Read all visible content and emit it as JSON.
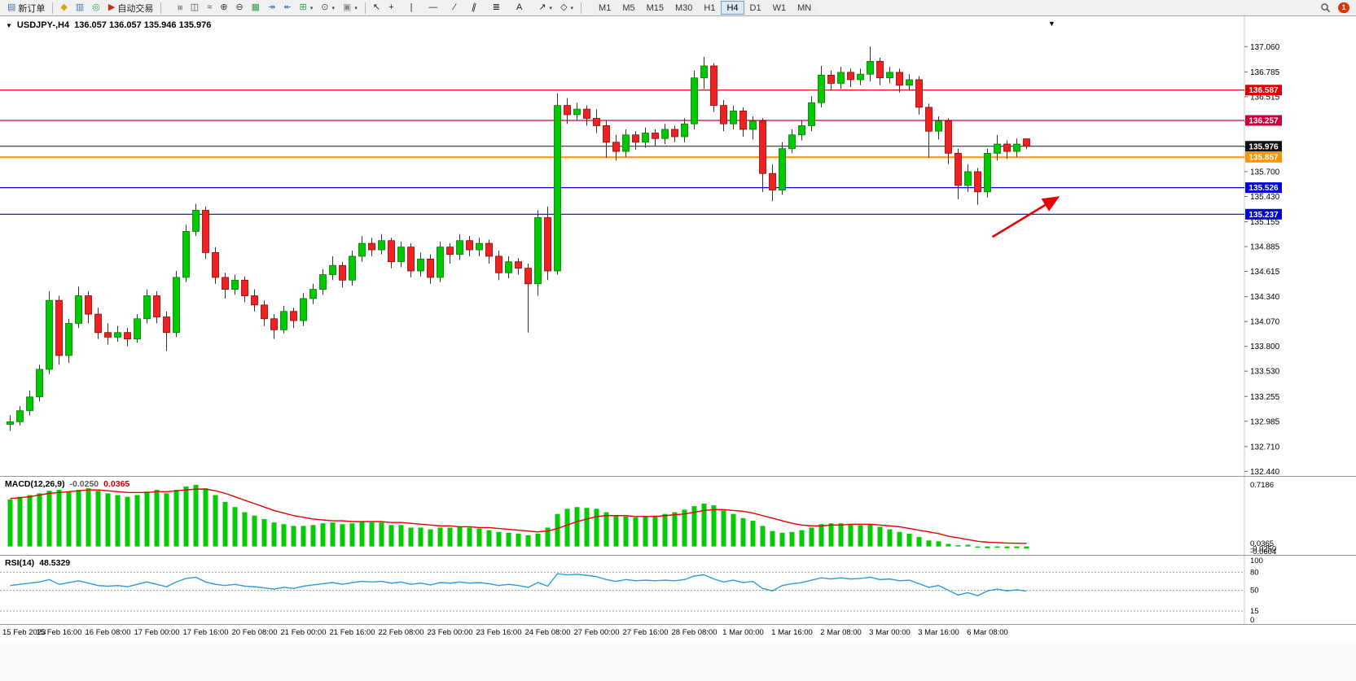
{
  "toolbar": {
    "new_order_label": "新订单",
    "autotrading_label": "自动交易",
    "timeframes": [
      "M1",
      "M5",
      "M15",
      "M30",
      "H1",
      "H4",
      "D1",
      "W1",
      "MN"
    ],
    "active_timeframe": "H4",
    "notification_count": "1"
  },
  "icons": {
    "new_order": "▤",
    "new_chart": "◆",
    "profiles": "▥",
    "refresh": "◎",
    "autotrading": "▶",
    "bars": "≡",
    "candles": "◫",
    "line_chart": "≈",
    "zoom_in": "⊕",
    "zoom_out": "⊖",
    "tile_windows": "▦",
    "auto_scroll": "↠",
    "chart_shift": "↞",
    "indicators": "⊞",
    "periods": "⊙",
    "templates": "▣",
    "cursor": "↖",
    "crosshair": "+",
    "vline": "|",
    "hline": "—",
    "trendline": "∕",
    "channel": "∥",
    "fibonacci": "≣",
    "text_tool": "A",
    "arrows_tool": "↗",
    "shapes_tool": "◇",
    "dropdown_caret": "▾",
    "chart_dropdown": "▼",
    "title_caret": "▼"
  },
  "chart": {
    "symbol_period": "USDJPY-,H4",
    "ohlc_text": "136.057 136.057 135.946 135.976",
    "macd_name": "MACD(12,26,9)",
    "macd_value": "-0.0250",
    "macd_signal_value": "0.0365",
    "rsi_name": "RSI(14)",
    "rsi_value": "48.5329"
  },
  "chart_data": [
    {
      "type": "candlestick",
      "title": "USDJPY- H4",
      "symbol": "USDJPY-",
      "timeframe": "H4",
      "ohlc_display": {
        "open": 136.057,
        "high": 136.057,
        "low": 135.946,
        "close": 135.976
      },
      "ylim": [
        132.39,
        137.39
      ],
      "price_axis_ticks": [
        "137.060",
        "136.785",
        "136.515",
        "136.240",
        "135.970",
        "135.700",
        "135.430",
        "135.155",
        "134.885",
        "134.615",
        "134.340",
        "134.070",
        "133.800",
        "133.530",
        "133.255",
        "132.985",
        "132.710",
        "132.440"
      ],
      "hlines": [
        {
          "label": "136.587",
          "price": 136.587,
          "color": "#dd0000",
          "name": "resistance-line-upper",
          "width": 1.2
        },
        {
          "label": "136.257",
          "price": 136.257,
          "color": "#c8003c",
          "name": "resistance-line-lower",
          "width": 1.2
        },
        {
          "label": "135.976",
          "price": 135.976,
          "color": "#111111",
          "name": "bid-price-line",
          "width": 1
        },
        {
          "label": "135.857",
          "price": 135.857,
          "color": "#ff9400",
          "name": "orange-level-line",
          "width": 2
        },
        {
          "label": "135.526",
          "price": 135.526,
          "color": "#0000dd",
          "name": "support-line-upper",
          "width": 1.2
        },
        {
          "label": "135.237",
          "price": 135.237,
          "color": "#0000dd",
          "name": "support-line-lower",
          "width": 1.2
        }
      ],
      "x_labels": [
        "15 Feb 2023",
        "15 Feb 16:00",
        "16 Feb 08:00",
        "17 Feb 00:00",
        "17 Feb 16:00",
        "20 Feb 08:00",
        "21 Feb 00:00",
        "21 Feb 16:00",
        "22 Feb 08:00",
        "23 Feb 00:00",
        "23 Feb 16:00",
        "24 Feb 08:00",
        "27 Feb 00:00",
        "27 Feb 16:00",
        "28 Feb 08:00",
        "1 Mar 00:00",
        "1 Mar 16:00",
        "2 Mar 08:00",
        "3 Mar 00:00",
        "3 Mar 16:00",
        "6 Mar 08:00"
      ],
      "bull_color": "#00c800",
      "bear_color": "#ee2222",
      "candles": [
        [
          132.95,
          133.05,
          132.88,
          132.98
        ],
        [
          132.98,
          133.15,
          132.94,
          133.1
        ],
        [
          133.1,
          133.32,
          133.05,
          133.25
        ],
        [
          133.25,
          133.6,
          133.2,
          133.55
        ],
        [
          133.55,
          134.4,
          133.5,
          134.3
        ],
        [
          134.3,
          134.35,
          133.6,
          133.7
        ],
        [
          133.7,
          134.1,
          133.62,
          134.05
        ],
        [
          134.05,
          134.45,
          134.0,
          134.35
        ],
        [
          134.35,
          134.4,
          134.05,
          134.15
        ],
        [
          134.15,
          134.22,
          133.88,
          133.95
        ],
        [
          133.95,
          134.05,
          133.82,
          133.9
        ],
        [
          133.9,
          134.02,
          133.85,
          133.95
        ],
        [
          133.95,
          134.0,
          133.8,
          133.88
        ],
        [
          133.88,
          134.15,
          133.84,
          134.1
        ],
        [
          134.1,
          134.42,
          134.05,
          134.35
        ],
        [
          134.35,
          134.4,
          134.05,
          134.12
        ],
        [
          134.12,
          134.18,
          133.75,
          133.95
        ],
        [
          133.95,
          134.62,
          133.9,
          134.55
        ],
        [
          134.55,
          135.12,
          134.5,
          135.05
        ],
        [
          135.05,
          135.35,
          135.0,
          135.28
        ],
        [
          135.28,
          135.32,
          134.75,
          134.82
        ],
        [
          134.82,
          134.88,
          134.48,
          134.55
        ],
        [
          134.55,
          134.6,
          134.32,
          134.42
        ],
        [
          134.42,
          134.58,
          134.36,
          134.52
        ],
        [
          134.52,
          134.56,
          134.28,
          134.35
        ],
        [
          134.35,
          134.42,
          134.18,
          134.25
        ],
        [
          134.25,
          134.3,
          134.02,
          134.1
        ],
        [
          134.1,
          134.15,
          133.88,
          133.98
        ],
        [
          133.98,
          134.24,
          133.94,
          134.18
        ],
        [
          134.18,
          134.22,
          134.0,
          134.08
        ],
        [
          134.08,
          134.38,
          134.02,
          134.32
        ],
        [
          134.32,
          134.48,
          134.26,
          134.42
        ],
        [
          134.42,
          134.64,
          134.36,
          134.58
        ],
        [
          134.58,
          134.78,
          134.52,
          134.68
        ],
        [
          134.68,
          134.72,
          134.44,
          134.52
        ],
        [
          134.52,
          134.84,
          134.46,
          134.78
        ],
        [
          134.78,
          135.0,
          134.72,
          134.92
        ],
        [
          134.92,
          134.98,
          134.78,
          134.85
        ],
        [
          134.85,
          135.02,
          134.8,
          134.95
        ],
        [
          134.95,
          134.98,
          134.65,
          134.72
        ],
        [
          134.72,
          134.94,
          134.66,
          134.88
        ],
        [
          134.88,
          134.92,
          134.55,
          134.62
        ],
        [
          134.62,
          134.82,
          134.56,
          134.75
        ],
        [
          134.75,
          134.8,
          134.48,
          134.55
        ],
        [
          134.55,
          134.94,
          134.5,
          134.88
        ],
        [
          134.88,
          134.92,
          134.7,
          134.8
        ],
        [
          134.8,
          135.02,
          134.74,
          134.95
        ],
        [
          134.95,
          135.0,
          134.78,
          134.85
        ],
        [
          134.85,
          134.98,
          134.78,
          134.92
        ],
        [
          134.92,
          134.96,
          134.7,
          134.78
        ],
        [
          134.78,
          134.84,
          134.52,
          134.6
        ],
        [
          134.6,
          134.78,
          134.54,
          134.72
        ],
        [
          134.72,
          134.76,
          134.58,
          134.65
        ],
        [
          134.65,
          134.7,
          133.95,
          134.48
        ],
        [
          134.48,
          135.28,
          134.35,
          135.2
        ],
        [
          135.2,
          135.32,
          134.52,
          134.62
        ],
        [
          134.62,
          136.55,
          134.58,
          136.42
        ],
        [
          136.42,
          136.5,
          136.22,
          136.32
        ],
        [
          136.32,
          136.45,
          136.26,
          136.38
        ],
        [
          136.38,
          136.42,
          136.2,
          136.28
        ],
        [
          136.28,
          136.38,
          136.12,
          136.2
        ],
        [
          136.2,
          136.26,
          135.85,
          136.02
        ],
        [
          136.02,
          136.1,
          135.82,
          135.92
        ],
        [
          135.92,
          136.16,
          135.86,
          136.1
        ],
        [
          136.1,
          136.14,
          135.94,
          136.02
        ],
        [
          136.02,
          136.18,
          135.96,
          136.12
        ],
        [
          136.12,
          136.16,
          135.98,
          136.06
        ],
        [
          136.06,
          136.22,
          136.0,
          136.16
        ],
        [
          136.16,
          136.2,
          136.02,
          136.08
        ],
        [
          136.08,
          136.28,
          136.02,
          136.22
        ],
        [
          136.22,
          136.8,
          136.16,
          136.72
        ],
        [
          136.72,
          136.95,
          136.6,
          136.85
        ],
        [
          136.85,
          136.88,
          136.35,
          136.42
        ],
        [
          136.42,
          136.48,
          136.14,
          136.22
        ],
        [
          136.22,
          136.42,
          136.16,
          136.36
        ],
        [
          136.36,
          136.4,
          136.08,
          136.16
        ],
        [
          136.16,
          136.3,
          136.05,
          136.25
        ],
        [
          136.25,
          136.28,
          135.48,
          135.68
        ],
        [
          135.68,
          135.78,
          135.38,
          135.5
        ],
        [
          135.5,
          136.02,
          135.45,
          135.95
        ],
        [
          135.95,
          136.16,
          135.9,
          136.1
        ],
        [
          136.1,
          136.26,
          136.04,
          136.2
        ],
        [
          136.2,
          136.52,
          136.14,
          136.45
        ],
        [
          136.45,
          136.85,
          136.4,
          136.75
        ],
        [
          136.75,
          136.8,
          136.58,
          136.66
        ],
        [
          136.66,
          136.84,
          136.6,
          136.78
        ],
        [
          136.78,
          136.82,
          136.62,
          136.7
        ],
        [
          136.7,
          136.82,
          136.64,
          136.76
        ],
        [
          136.76,
          137.06,
          136.68,
          136.9
        ],
        [
          136.9,
          136.94,
          136.64,
          136.72
        ],
        [
          136.72,
          136.84,
          136.66,
          136.78
        ],
        [
          136.78,
          136.82,
          136.56,
          136.64
        ],
        [
          136.64,
          136.76,
          136.58,
          136.7
        ],
        [
          136.7,
          136.74,
          136.32,
          136.4
        ],
        [
          136.4,
          136.44,
          135.85,
          136.14
        ],
        [
          136.14,
          136.3,
          136.05,
          136.25
        ],
        [
          136.25,
          136.28,
          135.78,
          135.9
        ],
        [
          135.9,
          135.95,
          135.4,
          135.55
        ],
        [
          135.55,
          135.78,
          135.48,
          135.7
        ],
        [
          135.7,
          135.74,
          135.34,
          135.48
        ],
        [
          135.48,
          135.95,
          135.42,
          135.9
        ],
        [
          135.9,
          136.1,
          135.82,
          136.0
        ],
        [
          136.0,
          136.04,
          135.84,
          135.92
        ],
        [
          135.92,
          136.06,
          135.86,
          136.0
        ],
        [
          136.057,
          136.057,
          135.946,
          135.976
        ]
      ],
      "annotation": {
        "type": "arrow",
        "color": "#e60000",
        "from": {
          "index": 100.5,
          "price": 134.99
        },
        "to": {
          "index": 107.2,
          "price": 135.42
        }
      }
    },
    {
      "type": "bar",
      "name": "MACD(12,26,9)",
      "value": -0.025,
      "signal_value": 0.0365,
      "ylim": [
        -0.0604,
        0.7186
      ],
      "right_axis": [
        "0.7186",
        "0.0365",
        "-0.0250",
        "-0.0604"
      ],
      "hist_color": "#00cc00",
      "signal_color": "#e60000",
      "hist": [
        0.55,
        0.58,
        0.6,
        0.62,
        0.65,
        0.66,
        0.64,
        0.66,
        0.68,
        0.65,
        0.62,
        0.6,
        0.58,
        0.6,
        0.64,
        0.66,
        0.62,
        0.66,
        0.7,
        0.72,
        0.68,
        0.6,
        0.52,
        0.46,
        0.4,
        0.36,
        0.32,
        0.28,
        0.26,
        0.24,
        0.24,
        0.25,
        0.27,
        0.28,
        0.26,
        0.27,
        0.29,
        0.28,
        0.28,
        0.25,
        0.25,
        0.22,
        0.22,
        0.2,
        0.22,
        0.22,
        0.23,
        0.22,
        0.21,
        0.19,
        0.17,
        0.16,
        0.15,
        0.13,
        0.15,
        0.22,
        0.38,
        0.44,
        0.46,
        0.45,
        0.44,
        0.4,
        0.36,
        0.35,
        0.34,
        0.35,
        0.36,
        0.38,
        0.4,
        0.43,
        0.47,
        0.5,
        0.48,
        0.42,
        0.38,
        0.33,
        0.3,
        0.24,
        0.18,
        0.16,
        0.17,
        0.19,
        0.22,
        0.26,
        0.27,
        0.27,
        0.26,
        0.25,
        0.26,
        0.23,
        0.2,
        0.17,
        0.15,
        0.11,
        0.07,
        0.06,
        0.03,
        0.01,
        0.02,
        -0.01,
        -0.02,
        -0.01,
        -0.02,
        -0.02,
        -0.025
      ],
      "signal": [
        0.56,
        0.57,
        0.58,
        0.6,
        0.62,
        0.63,
        0.64,
        0.65,
        0.66,
        0.66,
        0.65,
        0.64,
        0.63,
        0.63,
        0.63,
        0.64,
        0.64,
        0.65,
        0.66,
        0.67,
        0.67,
        0.65,
        0.62,
        0.58,
        0.54,
        0.5,
        0.46,
        0.42,
        0.39,
        0.36,
        0.34,
        0.32,
        0.31,
        0.3,
        0.3,
        0.29,
        0.29,
        0.29,
        0.29,
        0.28,
        0.28,
        0.27,
        0.26,
        0.25,
        0.24,
        0.24,
        0.23,
        0.23,
        0.22,
        0.22,
        0.21,
        0.2,
        0.19,
        0.18,
        0.17,
        0.18,
        0.21,
        0.25,
        0.29,
        0.32,
        0.35,
        0.36,
        0.36,
        0.36,
        0.35,
        0.35,
        0.35,
        0.36,
        0.37,
        0.38,
        0.4,
        0.42,
        0.43,
        0.43,
        0.42,
        0.41,
        0.39,
        0.36,
        0.33,
        0.3,
        0.27,
        0.25,
        0.24,
        0.24,
        0.25,
        0.25,
        0.26,
        0.26,
        0.26,
        0.25,
        0.24,
        0.23,
        0.21,
        0.19,
        0.17,
        0.15,
        0.12,
        0.1,
        0.08,
        0.06,
        0.05,
        0.045,
        0.04,
        0.038,
        0.0365
      ]
    },
    {
      "type": "line",
      "name": "RSI(14)",
      "value": 48.5329,
      "ylim": [
        0,
        100
      ],
      "levels": [
        80,
        50,
        15
      ],
      "right_axis": [
        "100",
        "80",
        "50",
        "15",
        "0"
      ],
      "line_color": "#2e9bdc",
      "values": [
        58,
        60,
        62,
        64,
        68,
        60,
        63,
        66,
        62,
        58,
        57,
        58,
        56,
        60,
        64,
        60,
        56,
        64,
        70,
        72,
        64,
        60,
        58,
        60,
        57,
        56,
        54,
        52,
        55,
        53,
        57,
        59,
        61,
        63,
        60,
        63,
        65,
        64,
        65,
        62,
        64,
        60,
        62,
        59,
        63,
        62,
        64,
        62,
        63,
        61,
        58,
        60,
        58,
        55,
        63,
        57,
        78,
        76,
        77,
        75,
        73,
        68,
        65,
        68,
        66,
        67,
        66,
        67,
        66,
        68,
        74,
        76,
        69,
        64,
        67,
        63,
        65,
        53,
        49,
        58,
        61,
        63,
        67,
        71,
        69,
        71,
        69,
        70,
        72,
        68,
        69,
        66,
        67,
        61,
        55,
        58,
        50,
        42,
        46,
        41,
        49,
        52,
        49,
        51,
        48.53
      ]
    }
  ]
}
